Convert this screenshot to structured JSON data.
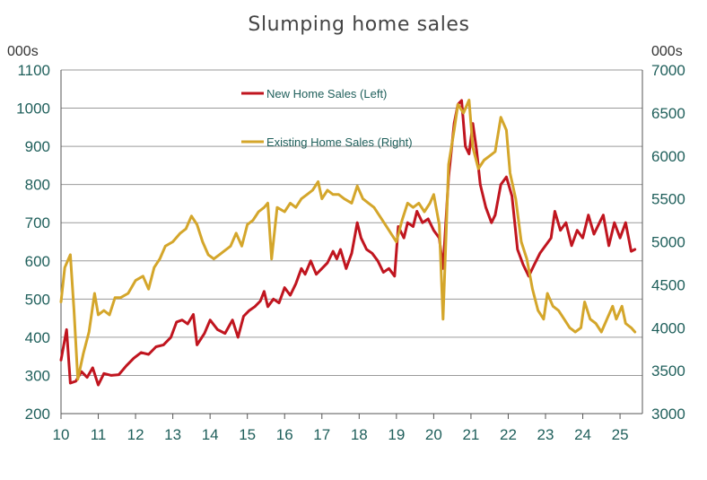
{
  "chart_data": {
    "type": "line",
    "title": "Slumping home sales",
    "left_unit": "000s",
    "right_unit": "000s",
    "x_ticks": [
      "10",
      "11",
      "12",
      "13",
      "14",
      "15",
      "16",
      "17",
      "18",
      "19",
      "20",
      "21",
      "22",
      "23",
      "24",
      "25"
    ],
    "xlim": [
      2010.0,
      2025.6
    ],
    "y_left": {
      "ticks": [
        200,
        300,
        400,
        500,
        600,
        700,
        800,
        900,
        1000,
        1100
      ],
      "ylim": [
        200,
        1100
      ]
    },
    "y_right": {
      "ticks": [
        3000,
        3500,
        4000,
        4500,
        5000,
        5500,
        6000,
        6500,
        7000
      ],
      "ylim": [
        3000,
        7000
      ]
    },
    "grid": true,
    "legend_placement": "top-center",
    "series": [
      {
        "name": "New Home Sales (Left)",
        "axis": "left",
        "color": "#c0151f",
        "points": [
          [
            2010.0,
            340
          ],
          [
            2010.15,
            420
          ],
          [
            2010.25,
            280
          ],
          [
            2010.4,
            285
          ],
          [
            2010.55,
            310
          ],
          [
            2010.7,
            295
          ],
          [
            2010.85,
            320
          ],
          [
            2011.0,
            275
          ],
          [
            2011.15,
            305
          ],
          [
            2011.35,
            300
          ],
          [
            2011.55,
            302
          ],
          [
            2011.75,
            325
          ],
          [
            2011.95,
            345
          ],
          [
            2012.15,
            360
          ],
          [
            2012.35,
            355
          ],
          [
            2012.55,
            375
          ],
          [
            2012.75,
            380
          ],
          [
            2012.95,
            400
          ],
          [
            2013.1,
            440
          ],
          [
            2013.25,
            445
          ],
          [
            2013.4,
            435
          ],
          [
            2013.55,
            460
          ],
          [
            2013.65,
            380
          ],
          [
            2013.85,
            410
          ],
          [
            2014.0,
            445
          ],
          [
            2014.2,
            420
          ],
          [
            2014.4,
            410
          ],
          [
            2014.6,
            445
          ],
          [
            2014.75,
            400
          ],
          [
            2014.9,
            455
          ],
          [
            2015.05,
            470
          ],
          [
            2015.2,
            480
          ],
          [
            2015.35,
            495
          ],
          [
            2015.45,
            520
          ],
          [
            2015.55,
            480
          ],
          [
            2015.7,
            500
          ],
          [
            2015.85,
            490
          ],
          [
            2016.0,
            530
          ],
          [
            2016.15,
            510
          ],
          [
            2016.3,
            540
          ],
          [
            2016.45,
            580
          ],
          [
            2016.55,
            565
          ],
          [
            2016.7,
            600
          ],
          [
            2016.85,
            565
          ],
          [
            2017.0,
            580
          ],
          [
            2017.15,
            595
          ],
          [
            2017.3,
            625
          ],
          [
            2017.4,
            605
          ],
          [
            2017.5,
            630
          ],
          [
            2017.65,
            580
          ],
          [
            2017.8,
            620
          ],
          [
            2017.95,
            700
          ],
          [
            2018.05,
            660
          ],
          [
            2018.2,
            630
          ],
          [
            2018.35,
            620
          ],
          [
            2018.5,
            600
          ],
          [
            2018.65,
            570
          ],
          [
            2018.8,
            580
          ],
          [
            2018.95,
            560
          ],
          [
            2019.05,
            690
          ],
          [
            2019.2,
            660
          ],
          [
            2019.3,
            700
          ],
          [
            2019.45,
            690
          ],
          [
            2019.55,
            730
          ],
          [
            2019.7,
            700
          ],
          [
            2019.85,
            710
          ],
          [
            2020.0,
            680
          ],
          [
            2020.15,
            660
          ],
          [
            2020.25,
            580
          ],
          [
            2020.4,
            820
          ],
          [
            2020.55,
            960
          ],
          [
            2020.65,
            1010
          ],
          [
            2020.75,
            1020
          ],
          [
            2020.85,
            900
          ],
          [
            2020.95,
            880
          ],
          [
            2021.05,
            960
          ],
          [
            2021.15,
            890
          ],
          [
            2021.25,
            800
          ],
          [
            2021.4,
            740
          ],
          [
            2021.55,
            700
          ],
          [
            2021.65,
            720
          ],
          [
            2021.8,
            800
          ],
          [
            2021.95,
            820
          ],
          [
            2022.1,
            770
          ],
          [
            2022.25,
            630
          ],
          [
            2022.4,
            590
          ],
          [
            2022.55,
            560
          ],
          [
            2022.7,
            590
          ],
          [
            2022.85,
            620
          ],
          [
            2023.0,
            640
          ],
          [
            2023.15,
            660
          ],
          [
            2023.25,
            730
          ],
          [
            2023.4,
            680
          ],
          [
            2023.55,
            700
          ],
          [
            2023.7,
            640
          ],
          [
            2023.85,
            680
          ],
          [
            2024.0,
            660
          ],
          [
            2024.15,
            720
          ],
          [
            2024.3,
            670
          ],
          [
            2024.45,
            700
          ],
          [
            2024.55,
            720
          ],
          [
            2024.7,
            640
          ],
          [
            2024.85,
            700
          ],
          [
            2025.0,
            660
          ],
          [
            2025.15,
            700
          ],
          [
            2025.3,
            625
          ],
          [
            2025.4,
            630
          ]
        ]
      },
      {
        "name": "Existing Home Sales (Right)",
        "axis": "right",
        "color": "#d4a62b",
        "points": [
          [
            2010.0,
            4300
          ],
          [
            2010.1,
            4700
          ],
          [
            2010.25,
            4850
          ],
          [
            2010.35,
            4200
          ],
          [
            2010.45,
            3400
          ],
          [
            2010.6,
            3700
          ],
          [
            2010.75,
            3950
          ],
          [
            2010.9,
            4400
          ],
          [
            2011.0,
            4150
          ],
          [
            2011.15,
            4200
          ],
          [
            2011.3,
            4150
          ],
          [
            2011.45,
            4350
          ],
          [
            2011.6,
            4350
          ],
          [
            2011.8,
            4400
          ],
          [
            2012.0,
            4550
          ],
          [
            2012.2,
            4600
          ],
          [
            2012.35,
            4450
          ],
          [
            2012.5,
            4700
          ],
          [
            2012.65,
            4800
          ],
          [
            2012.8,
            4950
          ],
          [
            2013.0,
            5000
          ],
          [
            2013.2,
            5100
          ],
          [
            2013.35,
            5150
          ],
          [
            2013.5,
            5300
          ],
          [
            2013.65,
            5200
          ],
          [
            2013.8,
            5000
          ],
          [
            2013.95,
            4850
          ],
          [
            2014.1,
            4800
          ],
          [
            2014.25,
            4850
          ],
          [
            2014.4,
            4900
          ],
          [
            2014.55,
            4950
          ],
          [
            2014.7,
            5100
          ],
          [
            2014.85,
            4950
          ],
          [
            2015.0,
            5200
          ],
          [
            2015.15,
            5250
          ],
          [
            2015.3,
            5350
          ],
          [
            2015.45,
            5400
          ],
          [
            2015.55,
            5450
          ],
          [
            2015.65,
            4800
          ],
          [
            2015.8,
            5400
          ],
          [
            2016.0,
            5350
          ],
          [
            2016.15,
            5450
          ],
          [
            2016.3,
            5400
          ],
          [
            2016.45,
            5500
          ],
          [
            2016.6,
            5550
          ],
          [
            2016.75,
            5600
          ],
          [
            2016.9,
            5700
          ],
          [
            2017.0,
            5500
          ],
          [
            2017.15,
            5600
          ],
          [
            2017.3,
            5550
          ],
          [
            2017.45,
            5550
          ],
          [
            2017.6,
            5500
          ],
          [
            2017.8,
            5450
          ],
          [
            2017.95,
            5650
          ],
          [
            2018.1,
            5500
          ],
          [
            2018.25,
            5450
          ],
          [
            2018.4,
            5400
          ],
          [
            2018.55,
            5300
          ],
          [
            2018.7,
            5200
          ],
          [
            2018.85,
            5100
          ],
          [
            2019.0,
            5000
          ],
          [
            2019.15,
            5250
          ],
          [
            2019.3,
            5450
          ],
          [
            2019.45,
            5400
          ],
          [
            2019.6,
            5450
          ],
          [
            2019.75,
            5350
          ],
          [
            2019.9,
            5450
          ],
          [
            2020.0,
            5550
          ],
          [
            2020.15,
            5200
          ],
          [
            2020.25,
            4100
          ],
          [
            2020.4,
            5900
          ],
          [
            2020.55,
            6300
          ],
          [
            2020.65,
            6600
          ],
          [
            2020.8,
            6500
          ],
          [
            2020.95,
            6650
          ],
          [
            2021.05,
            6100
          ],
          [
            2021.2,
            5850
          ],
          [
            2021.35,
            5950
          ],
          [
            2021.5,
            6000
          ],
          [
            2021.65,
            6050
          ],
          [
            2021.8,
            6450
          ],
          [
            2021.95,
            6300
          ],
          [
            2022.05,
            5800
          ],
          [
            2022.2,
            5500
          ],
          [
            2022.35,
            5000
          ],
          [
            2022.5,
            4800
          ],
          [
            2022.65,
            4450
          ],
          [
            2022.8,
            4200
          ],
          [
            2022.95,
            4100
          ],
          [
            2023.05,
            4400
          ],
          [
            2023.2,
            4250
          ],
          [
            2023.35,
            4200
          ],
          [
            2023.5,
            4100
          ],
          [
            2023.65,
            4000
          ],
          [
            2023.8,
            3950
          ],
          [
            2023.95,
            4000
          ],
          [
            2024.05,
            4300
          ],
          [
            2024.2,
            4100
          ],
          [
            2024.35,
            4050
          ],
          [
            2024.5,
            3950
          ],
          [
            2024.65,
            4100
          ],
          [
            2024.8,
            4250
          ],
          [
            2024.9,
            4100
          ],
          [
            2025.05,
            4250
          ],
          [
            2025.15,
            4050
          ],
          [
            2025.3,
            4000
          ],
          [
            2025.4,
            3950
          ]
        ]
      }
    ]
  }
}
